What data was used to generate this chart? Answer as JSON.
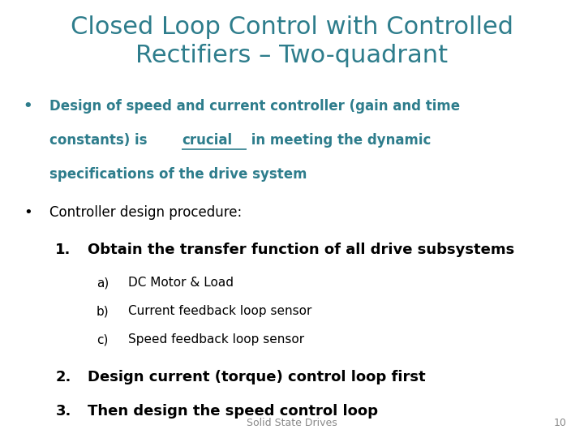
{
  "title_line1": "Closed Loop Control with Controlled",
  "title_line2": "Rectifiers – Two-quadrant",
  "title_color": "#2E7D8C",
  "background_color": "#FFFFFF",
  "bullet1_line1": "Design of speed and current controller (gain and time",
  "bullet1_line2_pre": "constants) is ",
  "bullet1_line2_crucial": "crucial",
  "bullet1_line2_post": " in meeting the dynamic",
  "bullet1_line3": "specifications of the drive system",
  "bullet1_color": "#2E7D8C",
  "bullet2_text": "Controller design procedure:",
  "bullet2_color": "#000000",
  "item1_num": "1.",
  "item1_text": "Obtain the transfer function of all drive subsystems",
  "item1_color": "#000000",
  "sub_a": "DC Motor & Load",
  "sub_b": "Current feedback loop sensor",
  "sub_c": "Speed feedback loop sensor",
  "sub_color": "#000000",
  "item2_num": "2.",
  "item2_text": "Design current (torque) control loop first",
  "item2_color": "#000000",
  "item3_num": "3.",
  "item3_text": "Then design the speed control loop",
  "item3_color": "#000000",
  "footer_text": "Solid State Drives",
  "footer_page": "10",
  "footer_color": "#888888"
}
